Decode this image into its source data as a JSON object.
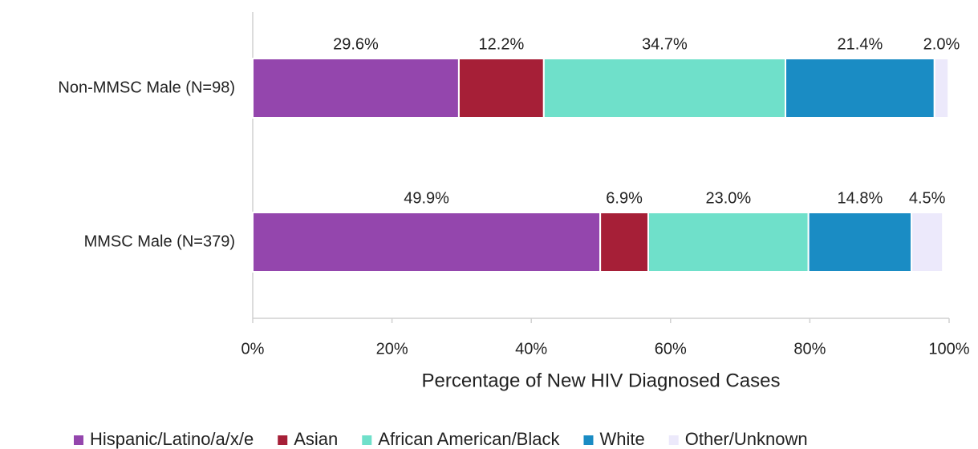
{
  "chart_data": {
    "type": "stacked-barh",
    "xlabel": "Percentage of New HIV Diagnosed Cases",
    "categories": [
      "Non-MMSC Male (N=98)",
      "MMSC Male (N=379)"
    ],
    "series": [
      {
        "name": "Hispanic/Latino/a/x/e",
        "color": "#9446ad",
        "values": [
          29.6,
          49.9
        ],
        "value_labels": [
          "29.6%",
          "49.9%"
        ]
      },
      {
        "name": "Asian",
        "color": "#a61f37",
        "values": [
          12.2,
          6.9
        ],
        "value_labels": [
          "12.2%",
          "6.9%"
        ]
      },
      {
        "name": "African American/Black",
        "color": "#6fe0ca",
        "values": [
          34.7,
          23.0
        ],
        "value_labels": [
          "34.7%",
          "23.0%"
        ]
      },
      {
        "name": "White",
        "color": "#1a8cc4",
        "values": [
          21.4,
          14.8
        ],
        "value_labels": [
          "21.4%",
          "14.8%"
        ]
      },
      {
        "name": "Other/Unknown",
        "color": "#ece9fb",
        "values": [
          2.0,
          4.5
        ],
        "value_labels": [
          "2.0%",
          "4.5%"
        ]
      }
    ],
    "xlim": [
      0,
      100
    ],
    "xticks": [
      {
        "value": 0,
        "label": "0%"
      },
      {
        "value": 20,
        "label": "20%"
      },
      {
        "value": 40,
        "label": "40%"
      },
      {
        "value": 60,
        "label": "60%"
      },
      {
        "value": 80,
        "label": "80%"
      },
      {
        "value": 100,
        "label": "100%"
      }
    ],
    "legend": "bottom"
  }
}
